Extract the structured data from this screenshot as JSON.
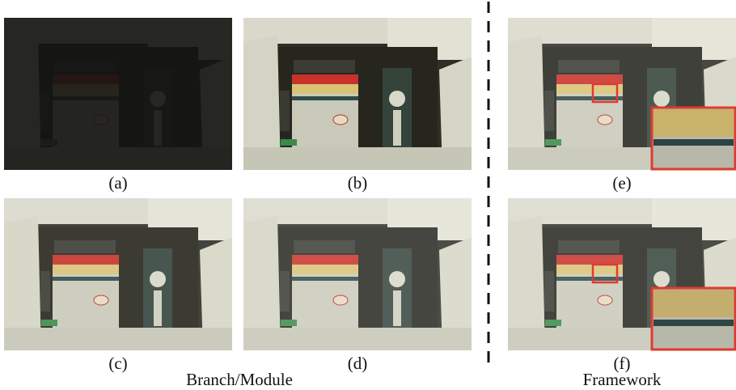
{
  "panels": [
    {
      "label": "(a)"
    },
    {
      "label": "(b)"
    },
    {
      "label": "(c)"
    },
    {
      "label": "(d)"
    },
    {
      "label": "(e)"
    },
    {
      "label": "(f)"
    }
  ],
  "groups": {
    "left": "Branch/Module",
    "right": "Framework"
  }
}
